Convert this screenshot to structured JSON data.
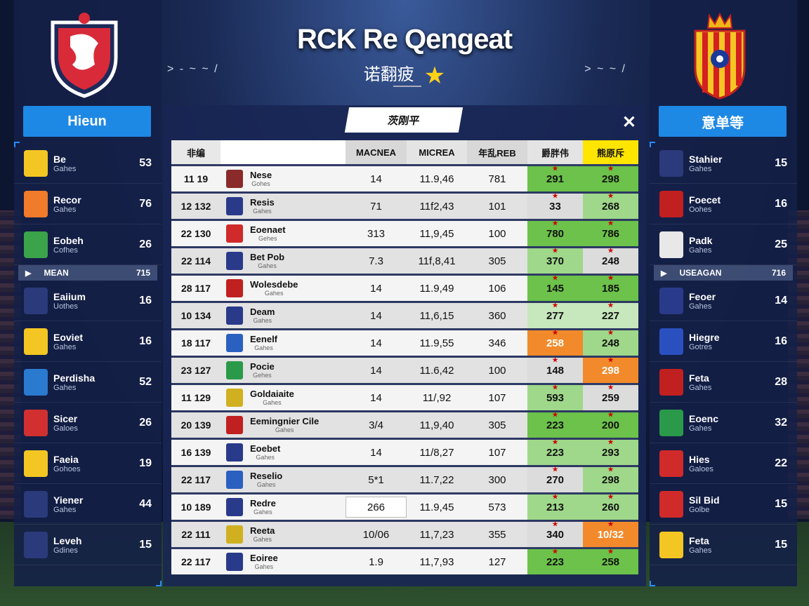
{
  "header": {
    "title": "RCK Re Qengeat",
    "subtitle": "诺翻疲",
    "deco_left": "> - ~ ~ /",
    "deco_right": "> ~ ~ /"
  },
  "left_panel": {
    "button_label": "Hieun",
    "rows": [
      {
        "name": "Be",
        "sub": "Gahes",
        "value": "53",
        "color": "#f3c623"
      },
      {
        "name": "Recor",
        "sub": "Gahes",
        "value": "76",
        "color": "#f07b2a"
      },
      {
        "name": "Eobeh",
        "sub": "Cofhes",
        "value": "26",
        "color": "#3ba34a"
      },
      {
        "name": "Eaiium",
        "sub": "Uothes",
        "value": "16",
        "color": "#2a3a7a"
      },
      {
        "name": "Eoviet",
        "sub": "Gahes",
        "value": "16",
        "color": "#f3c623"
      },
      {
        "name": "Perdisha",
        "sub": "Gahes",
        "value": "52",
        "color": "#2a7ad0"
      },
      {
        "name": "Sicer",
        "sub": "Galoes",
        "value": "26",
        "color": "#d23030"
      },
      {
        "name": "Faeia",
        "sub": "Gohoes",
        "value": "19",
        "color": "#f3c623"
      },
      {
        "name": "Yiener",
        "sub": "Gahes",
        "value": "44",
        "color": "#2a3a7a"
      },
      {
        "name": "Leveh",
        "sub": "Gdines",
        "value": "15",
        "color": "#2a3a7a"
      }
    ],
    "separator": {
      "label": "MEAN",
      "value": "715"
    }
  },
  "right_panel": {
    "button_label": "意单等",
    "rows": [
      {
        "name": "Stahier",
        "sub": "Gahes",
        "value": "15",
        "color": "#2a3a7a"
      },
      {
        "name": "Foecet",
        "sub": "Oohes",
        "value": "16",
        "color": "#c02020"
      },
      {
        "name": "Padk",
        "sub": "Gahes",
        "value": "25",
        "color": "#e8e8e8"
      },
      {
        "name": "Feoer",
        "sub": "Gahes",
        "value": "14",
        "color": "#2a3a8a"
      },
      {
        "name": "Hiegre",
        "sub": "Gotres",
        "value": "16",
        "color": "#2a50c0"
      },
      {
        "name": "Feta",
        "sub": "Gahes",
        "value": "28",
        "color": "#c02020"
      },
      {
        "name": "Eoenc",
        "sub": "Gahes",
        "value": "32",
        "color": "#2a9a4a"
      },
      {
        "name": "Hies",
        "sub": "Galoes",
        "value": "22",
        "color": "#d02a2a"
      },
      {
        "name": "Sil Bid",
        "sub": "Golbe",
        "value": "15",
        "color": "#d02a2a"
      },
      {
        "name": "Feta",
        "sub": "Gahes",
        "value": "15",
        "color": "#f3c623"
      }
    ],
    "separator": {
      "label": "USEAGAN",
      "value": "716"
    }
  },
  "main": {
    "tab_label": "茨刚平",
    "close_icon": "✕",
    "headers": [
      "非编",
      "",
      "MACNEA",
      "MICREA",
      "年乱REB",
      "爵胖伟",
      "熊原斥"
    ],
    "rows": [
      {
        "pos": "11 19",
        "name": "Nese",
        "sub": "Gohes",
        "a": "14",
        "b": "11.9,46",
        "c": "781",
        "d": "291",
        "e": "298",
        "dc": "g1",
        "ec": "g1",
        "flag": "#8a2a2a"
      },
      {
        "pos": "12 132",
        "name": "Resis",
        "sub": "Gahes",
        "a": "71",
        "b": "11f2,43",
        "c": "101",
        "d": "33",
        "e": "268",
        "dc": "gs",
        "ec": "g2",
        "flag": "#2a3a8a"
      },
      {
        "pos": "22 130",
        "name": "Eoenaet",
        "sub": "Gehes",
        "a": "313",
        "b": "11,9,45",
        "c": "100",
        "d": "780",
        "e": "786",
        "dc": "g1",
        "ec": "g1",
        "flag": "#d02a2a"
      },
      {
        "pos": "22 114",
        "name": "Bet Pob",
        "sub": "Gahes",
        "a": "7.3",
        "b": "11f,8,41",
        "c": "305",
        "d": "370",
        "e": "248",
        "dc": "g2",
        "ec": "gs",
        "flag": "#2a3a8a"
      },
      {
        "pos": "28 117",
        "name": "Wolesdebe",
        "sub": "Gahes",
        "a": "14",
        "b": "11.9,49",
        "c": "106",
        "d": "145",
        "e": "185",
        "dc": "g1",
        "ec": "g1",
        "flag": "#c02020"
      },
      {
        "pos": "10 134",
        "name": "Deam",
        "sub": "Gahes",
        "a": "14",
        "b": "11,6,15",
        "c": "360",
        "d": "277",
        "e": "227",
        "dc": "g3",
        "ec": "g3",
        "flag": "#2a3a8a"
      },
      {
        "pos": "18 117",
        "name": "Eenelf",
        "sub": "Gahes",
        "a": "14",
        "b": "11.9,55",
        "c": "346",
        "d": "258",
        "e": "248",
        "dc": "o1",
        "ec": "g2",
        "flag": "#2a60c0"
      },
      {
        "pos": "23 127",
        "name": "Pocie",
        "sub": "Gehes",
        "a": "14",
        "b": "11.6,42",
        "c": "100",
        "d": "148",
        "e": "298",
        "dc": "gs",
        "ec": "o1",
        "flag": "#2a9a4a"
      },
      {
        "pos": "11 129",
        "name": "Goldaiaite",
        "sub": "Gahes",
        "a": "14",
        "b": "11/,92",
        "c": "107",
        "d": "593",
        "e": "259",
        "dc": "g2",
        "ec": "gs",
        "flag": "#d0b020"
      },
      {
        "pos": "20 139",
        "name": "Eemingnier Cile",
        "sub": "Gahes",
        "a": "3/4",
        "b": "11,9,40",
        "c": "305",
        "d": "223",
        "e": "200",
        "dc": "g1",
        "ec": "g1",
        "flag": "#c02020"
      },
      {
        "pos": "16 139",
        "name": "Eoebet",
        "sub": "Gahes",
        "a": "14",
        "b": "11/8,27",
        "c": "107",
        "d": "223",
        "e": "293",
        "dc": "g2",
        "ec": "g2",
        "flag": "#2a3a8a"
      },
      {
        "pos": "22 117",
        "name": "Reselio",
        "sub": "Gahes",
        "a": "5*1",
        "b": "11.7,22",
        "c": "300",
        "d": "270",
        "e": "298",
        "dc": "gs",
        "ec": "g2",
        "flag": "#2a60c0"
      },
      {
        "pos": "10 189",
        "name": "Redre",
        "sub": "Gahes",
        "a": "266",
        "b": "11.9,45",
        "c": "573",
        "d": "213",
        "e": "260",
        "dc": "g2",
        "ec": "g2",
        "flag": "#2a3a8a",
        "boxed": true
      },
      {
        "pos": "22 111",
        "name": "Reeta",
        "sub": "Gahes",
        "a": "10/06",
        "b": "11,7,23",
        "c": "355",
        "d": "340",
        "e": "10/32",
        "dc": "gs",
        "ec": "o1",
        "flag": "#d0b020"
      },
      {
        "pos": "22 117",
        "name": "Eoiree",
        "sub": "Gahes",
        "a": "1.9",
        "b": "11,7,93",
        "c": "127",
        "d": "223",
        "e": "258",
        "dc": "g1",
        "ec": "g1",
        "flag": "#2a3a8a"
      }
    ]
  }
}
